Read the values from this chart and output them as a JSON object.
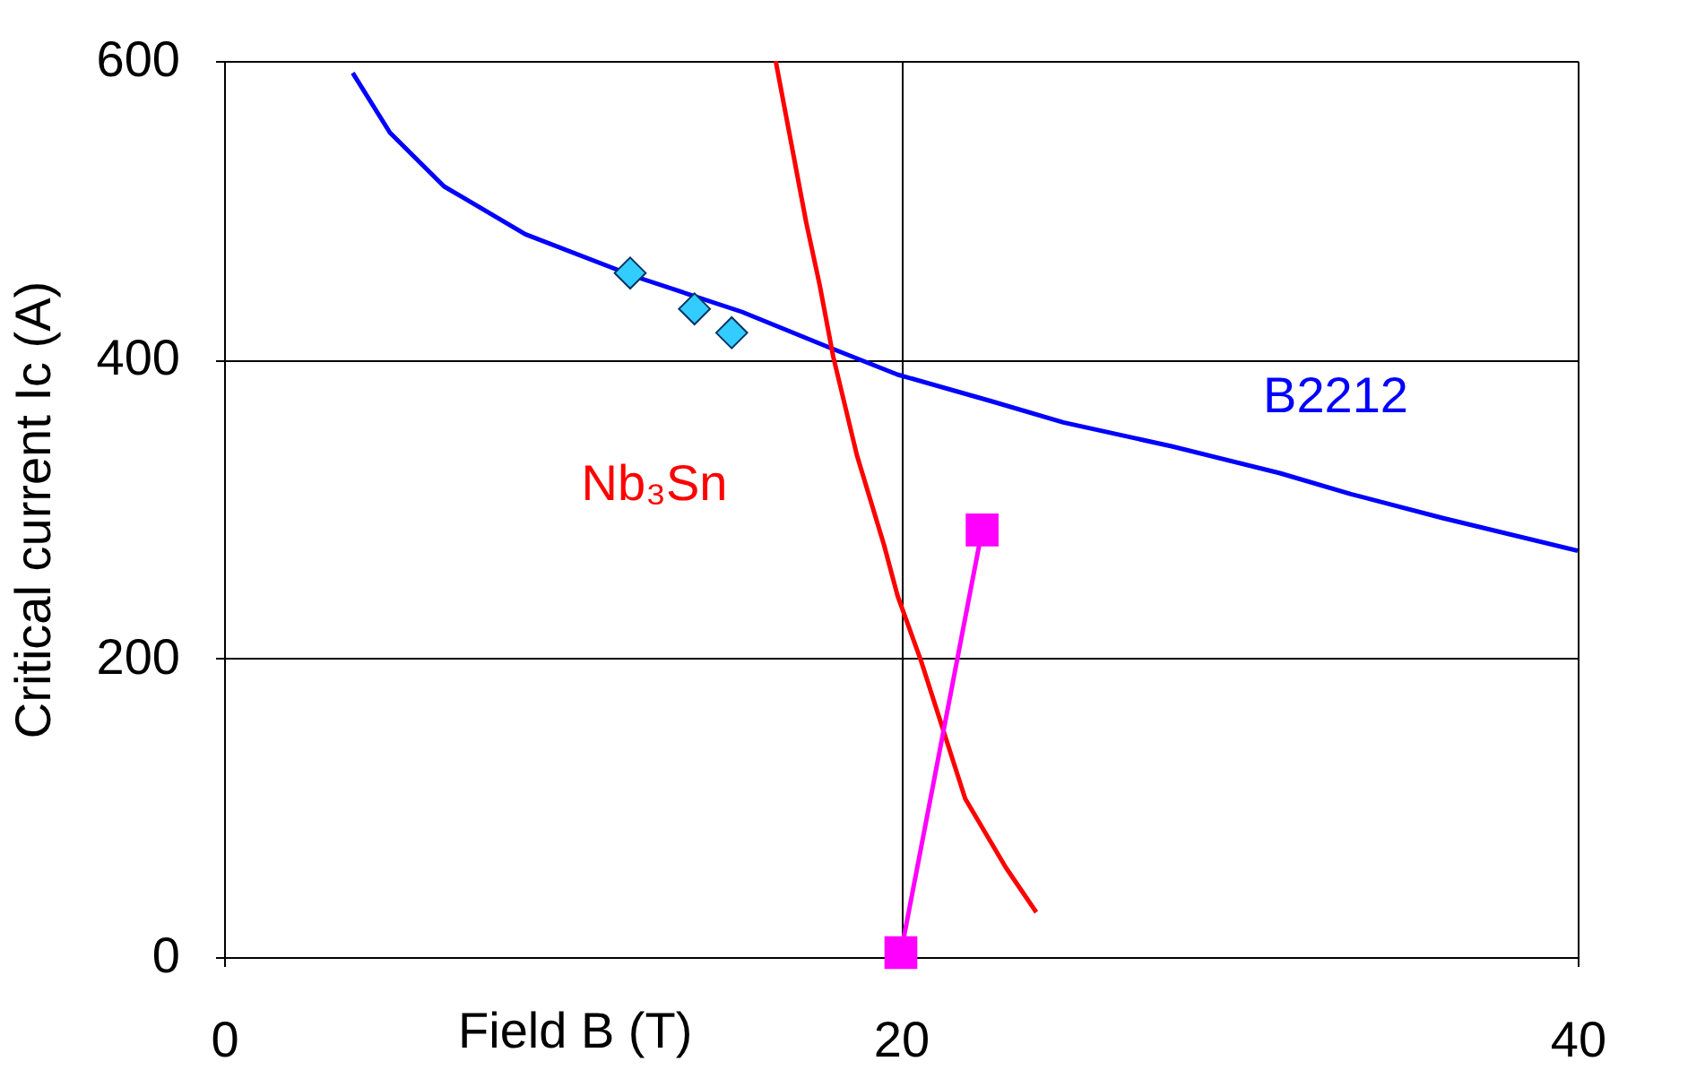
{
  "chart_data": {
    "type": "line",
    "xlabel": "Field B (T)",
    "ylabel": "Critical current Ic (A)",
    "xlim": [
      0,
      40
    ],
    "ylim": [
      0,
      600
    ],
    "xticks": [
      0,
      20,
      40
    ],
    "yticks": [
      0,
      200,
      400,
      600
    ],
    "grid": true,
    "series": [
      {
        "name": "B2212",
        "color": "#0000ff",
        "marker": "none",
        "x": [
          3.8,
          4.9,
          6.5,
          8.9,
          12.1,
          15.3,
          17.9,
          19.9,
          22.7,
          24.8,
          28,
          31.2,
          33.3,
          36,
          40
        ],
        "values": [
          592,
          552,
          516,
          484,
          456,
          432,
          408,
          390,
          372,
          358,
          342,
          324,
          310,
          294,
          272
        ]
      },
      {
        "name": "Nb₃Sn",
        "color": "#ff0000",
        "marker": "none",
        "x": [
          16.3,
          16.7,
          17.2,
          17.6,
          18.0,
          18.7,
          19.5,
          19.9,
          20.6,
          21.9,
          23.1,
          24.0
        ],
        "values": [
          600,
          552,
          492,
          450,
          402,
          336,
          276,
          242,
          198,
          106,
          60,
          30
        ]
      },
      {
        "color": "#33ccff",
        "type": "scatter",
        "marker": "diamond",
        "x": [
          12.0,
          13.9,
          15.0
        ],
        "values": [
          458,
          434,
          418
        ]
      },
      {
        "color": "#ff00ff",
        "marker": "square",
        "x": [
          20,
          22.4
        ],
        "values": [
          3,
          286
        ]
      }
    ]
  }
}
